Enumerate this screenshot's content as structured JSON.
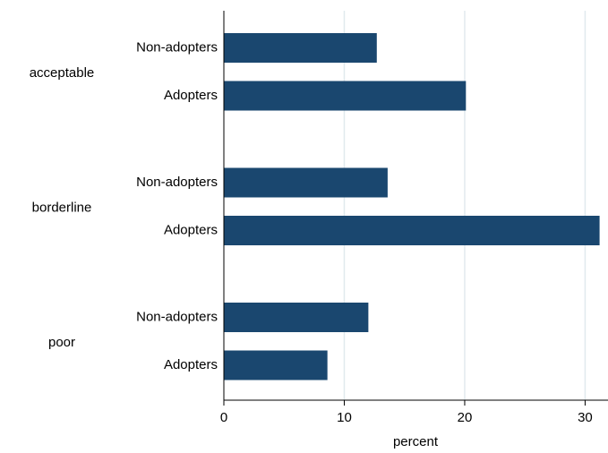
{
  "chart_data": {
    "type": "bar",
    "orientation": "horizontal",
    "xlabel": "percent",
    "color": "#1a476f",
    "grid": true,
    "xlim": [
      0,
      31.9
    ],
    "xticks": [
      0,
      10,
      20,
      30
    ],
    "groups": [
      {
        "name": "acceptable",
        "categories": [
          "Non-adopters",
          "Adopters"
        ],
        "values": [
          12.7,
          20.1
        ]
      },
      {
        "name": "borderline",
        "categories": [
          "Non-adopters",
          "Adopters"
        ],
        "values": [
          13.6,
          31.2
        ]
      },
      {
        "name": "poor",
        "categories": [
          "Non-adopters",
          "Adopters"
        ],
        "values": [
          12.0,
          8.6
        ]
      }
    ]
  }
}
